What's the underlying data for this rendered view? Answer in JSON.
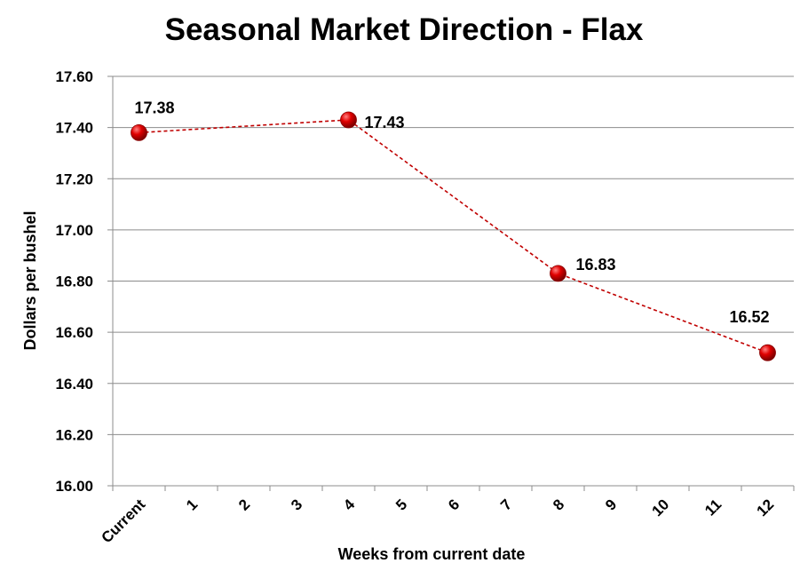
{
  "chart_data": {
    "type": "line",
    "title": "Seasonal Market Direction - Flax",
    "xlabel": "Weeks from current date",
    "ylabel": "Dollars per bushel",
    "categories": [
      "Current",
      "1",
      "2",
      "3",
      "4",
      "5",
      "6",
      "7",
      "8",
      "9",
      "10",
      "11",
      "12"
    ],
    "ylim": [
      16.0,
      17.6
    ],
    "yticks": [
      "16.00",
      "16.20",
      "16.40",
      "16.60",
      "16.80",
      "17.00",
      "17.20",
      "17.40",
      "17.60"
    ],
    "grid": true,
    "series": [
      {
        "points": [
          {
            "x": "Current",
            "y": 17.38,
            "label": "17.38"
          },
          {
            "x": "4",
            "y": 17.43,
            "label": "17.43"
          },
          {
            "x": "8",
            "y": 16.83,
            "label": "16.83"
          },
          {
            "x": "12",
            "y": 16.52,
            "label": "16.52"
          }
        ],
        "color": "#c00000",
        "line_style": "dashed"
      }
    ]
  }
}
